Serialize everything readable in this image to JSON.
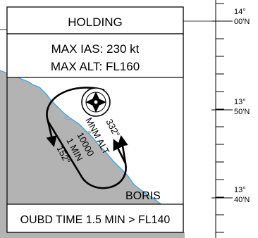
{
  "box": {
    "title": "HOLDING",
    "speed_limit": "MAX IAS: 230 kt",
    "altitude_limit": "MAX ALT: FL160",
    "outbound": "OUBD TIME 1.5 MIN > FL140"
  },
  "hold": {
    "fix_name": "BORIS",
    "inbound_track": "332°",
    "outbound_track": "152°",
    "minimum_altitude": [
      "MNM ALT",
      "10000"
    ],
    "leg_time": "1 MIN"
  },
  "graticule": {
    "latitude_labels": [
      {
        "deg": "14°",
        "min": "00'N"
      },
      {
        "deg": "13°",
        "min": "50'N"
      },
      {
        "deg": "13°",
        "min": "40'N"
      }
    ]
  },
  "colors": {
    "land": "#b3b3b3",
    "coast": "#4aa3e0",
    "ink": "#000000"
  },
  "icons": {
    "fix_symbol": "compass-rose-waypoint-icon"
  }
}
